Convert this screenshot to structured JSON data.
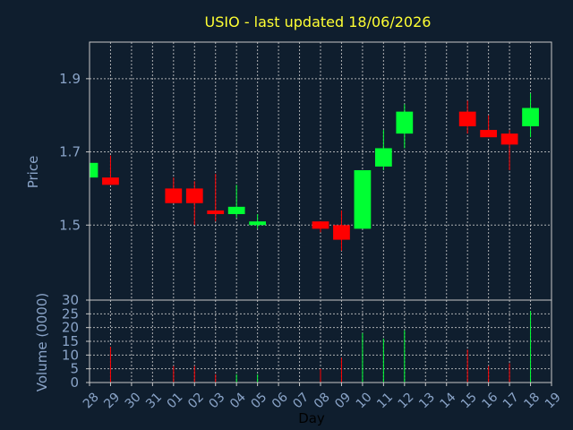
{
  "colors": {
    "background": "#0f1e2e",
    "title": "#ffff33",
    "axis": "#8aa4c8",
    "up": "#00ff33",
    "down": "#ff0000",
    "wick_up": "#00ff33",
    "wick_down": "#ff0000"
  },
  "chart_data": [
    {
      "type": "candlestick",
      "title": "USIO - last updated 18/06/2026",
      "ylabel": "Price",
      "ylim": [
        1.295,
        2.0
      ],
      "yticks": [
        1.5,
        1.7,
        1.9
      ],
      "ytick_labels": [
        "1.5",
        "1.7",
        "1.9"
      ],
      "grid": true,
      "x_categories": [
        "28",
        "29",
        "30",
        "31",
        "01",
        "02",
        "03",
        "04",
        "05",
        "06",
        "07",
        "08",
        "09",
        "10",
        "11",
        "12",
        "13",
        "14",
        "15",
        "16",
        "17",
        "18",
        "19"
      ],
      "candles": [
        {
          "day": "28",
          "open": 1.63,
          "high": 1.67,
          "low": 1.63,
          "close": 1.67,
          "dir": "up"
        },
        {
          "day": "29",
          "open": 1.63,
          "high": 1.69,
          "low": 1.61,
          "close": 1.61,
          "dir": "down"
        },
        {
          "day": "01",
          "open": 1.6,
          "high": 1.63,
          "low": 1.56,
          "close": 1.56,
          "dir": "down"
        },
        {
          "day": "02",
          "open": 1.6,
          "high": 1.62,
          "low": 1.5,
          "close": 1.56,
          "dir": "down"
        },
        {
          "day": "03",
          "open": 1.54,
          "high": 1.64,
          "low": 1.51,
          "close": 1.53,
          "dir": "down"
        },
        {
          "day": "04",
          "open": 1.53,
          "high": 1.61,
          "low": 1.52,
          "close": 1.55,
          "dir": "up"
        },
        {
          "day": "05",
          "open": 1.5,
          "high": 1.53,
          "low": 1.49,
          "close": 1.51,
          "dir": "up"
        },
        {
          "day": "08",
          "open": 1.51,
          "high": 1.51,
          "low": 1.48,
          "close": 1.49,
          "dir": "down"
        },
        {
          "day": "09",
          "open": 1.5,
          "high": 1.54,
          "low": 1.43,
          "close": 1.46,
          "dir": "down"
        },
        {
          "day": "10",
          "open": 1.49,
          "high": 1.65,
          "low": 1.49,
          "close": 1.65,
          "dir": "up"
        },
        {
          "day": "11",
          "open": 1.66,
          "high": 1.76,
          "low": 1.65,
          "close": 1.71,
          "dir": "up"
        },
        {
          "day": "12",
          "open": 1.75,
          "high": 1.83,
          "low": 1.71,
          "close": 1.81,
          "dir": "up"
        },
        {
          "day": "15",
          "open": 1.81,
          "high": 1.84,
          "low": 1.75,
          "close": 1.77,
          "dir": "down"
        },
        {
          "day": "16",
          "open": 1.76,
          "high": 1.8,
          "low": 1.74,
          "close": 1.74,
          "dir": "down"
        },
        {
          "day": "17",
          "open": 1.75,
          "high": 1.76,
          "low": 1.65,
          "close": 1.72,
          "dir": "down"
        },
        {
          "day": "18",
          "open": 1.77,
          "high": 1.86,
          "low": 1.74,
          "close": 1.82,
          "dir": "up"
        }
      ]
    },
    {
      "type": "bar",
      "ylabel": "Volume (0000)",
      "xlabel": "Day",
      "ylim": [
        0,
        30
      ],
      "yticks": [
        0,
        5,
        10,
        15,
        20,
        25,
        30
      ],
      "ytick_labels": [
        "0",
        "5",
        "10",
        "15",
        "20",
        "25",
        "30"
      ],
      "grid": true,
      "categories": [
        "28",
        "29",
        "30",
        "31",
        "01",
        "02",
        "03",
        "04",
        "05",
        "06",
        "07",
        "08",
        "09",
        "10",
        "11",
        "12",
        "13",
        "14",
        "15",
        "16",
        "17",
        "18",
        "19"
      ],
      "tick_labels": [
        "28",
        "29",
        "30",
        "31",
        "01",
        "02",
        "03",
        "04",
        "05",
        "06",
        "07",
        "08",
        "09",
        "10",
        "11",
        "12",
        "13",
        "14",
        "15",
        "16",
        "17",
        "18",
        "19"
      ],
      "bars": [
        {
          "day": "28",
          "value": 1,
          "dir": "up"
        },
        {
          "day": "29",
          "value": 13,
          "dir": "down"
        },
        {
          "day": "01",
          "value": 6,
          "dir": "down"
        },
        {
          "day": "02",
          "value": 6,
          "dir": "down"
        },
        {
          "day": "03",
          "value": 3,
          "dir": "down"
        },
        {
          "day": "04",
          "value": 3,
          "dir": "up"
        },
        {
          "day": "05",
          "value": 3,
          "dir": "up"
        },
        {
          "day": "08",
          "value": 5,
          "dir": "down"
        },
        {
          "day": "09",
          "value": 9,
          "dir": "down"
        },
        {
          "day": "10",
          "value": 18,
          "dir": "up"
        },
        {
          "day": "11",
          "value": 16,
          "dir": "up"
        },
        {
          "day": "12",
          "value": 19,
          "dir": "up"
        },
        {
          "day": "15",
          "value": 12,
          "dir": "down"
        },
        {
          "day": "16",
          "value": 6,
          "dir": "down"
        },
        {
          "day": "17",
          "value": 7,
          "dir": "down"
        },
        {
          "day": "18",
          "value": 26,
          "dir": "up"
        }
      ]
    }
  ]
}
